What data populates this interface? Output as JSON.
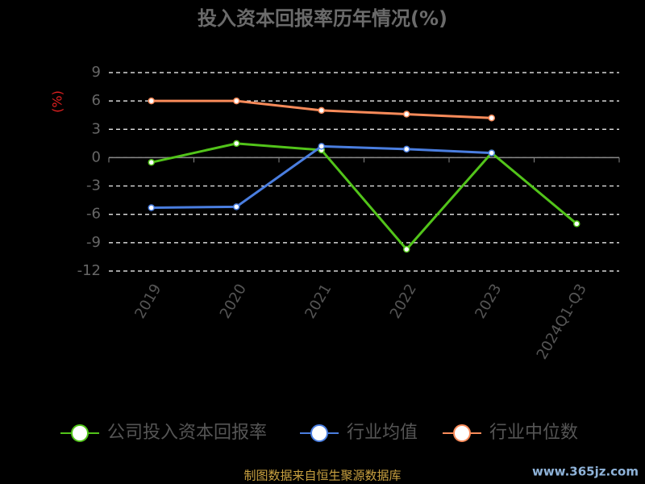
{
  "chart_data": {
    "type": "line",
    "title": "投入资本回报率历年情况(%)",
    "y_label": "(%)",
    "categories": [
      "2019",
      "2020",
      "2021",
      "2022",
      "2023",
      "2024Q1-Q3"
    ],
    "series": [
      {
        "name": "公司投入资本回报率",
        "color": "#52c41a",
        "values": [
          -0.5,
          1.5,
          0.8,
          -9.7,
          0.5,
          -7.0
        ]
      },
      {
        "name": "行业均值",
        "color": "#4a7ee0",
        "values": [
          -5.3,
          -5.2,
          1.2,
          0.9,
          0.5,
          null
        ]
      },
      {
        "name": "行业中位数",
        "color": "#f98b5a",
        "values": [
          6.0,
          6.0,
          5.0,
          4.6,
          4.2,
          null
        ]
      }
    ],
    "ylim": [
      -12,
      9
    ],
    "yticks": [
      -12,
      -9,
      -6,
      -3,
      0,
      3,
      6,
      9
    ],
    "grid": true,
    "source": "制图数据来自恒生聚源数据库",
    "watermark": "www.365jz.com"
  }
}
